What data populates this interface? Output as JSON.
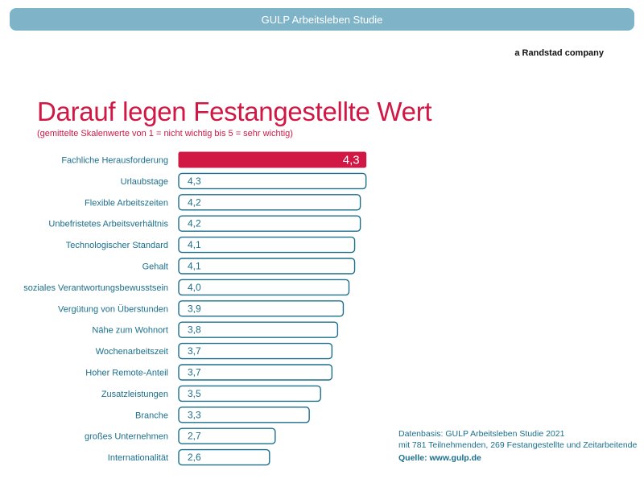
{
  "header": {
    "title": "GULP Arbeitsleben Studie"
  },
  "brand": {
    "tagline": "a Randstad company"
  },
  "footnote": {
    "line1": "Datenbasis: GULP Arbeitsleben Studie 2021",
    "line2": "mit 781 Teilnehmenden, 269 Festangestellte und Zeitarbeitende",
    "source": "Quelle: www.gulp.de"
  },
  "colors": {
    "accent": "#d11845",
    "bar_outline": "#1b6f8c",
    "label": "#1b6f8c",
    "header": "#7fb4c8"
  },
  "chart_data": {
    "type": "bar",
    "orientation": "horizontal",
    "title": "Darauf legen Festangestellte Wert",
    "subtitle": "(gemittelte Skalenwerte von 1 = nicht wichtig bis 5 = sehr wichtig)",
    "categories": [
      "Fachliche Herausforderung",
      "Urlaubstage",
      "Flexible Arbeitszeiten",
      "Unbefristetes Arbeitsverhältnis",
      "Technologischer Standard",
      "Gehalt",
      "soziales Verantwortungsbewusstsein",
      "Vergütung von Überstunden",
      "Nähe zum Wohnort",
      "Wochenarbeitszeit",
      "Hoher Remote-Anteil",
      "Zusatzleistungen",
      "Branche",
      "großes Unternehmen",
      "Internationalität"
    ],
    "values": [
      4.3,
      4.3,
      4.2,
      4.2,
      4.1,
      4.1,
      4.0,
      3.9,
      3.8,
      3.7,
      3.7,
      3.5,
      3.3,
      2.7,
      2.6
    ],
    "value_labels": [
      "4,3",
      "4,3",
      "4,2",
      "4,2",
      "4,1",
      "4,1",
      "4,0",
      "3,9",
      "3,8",
      "3,7",
      "3,7",
      "3,5",
      "3,3",
      "2,7",
      "2,6"
    ],
    "highlighted_index": 0,
    "xlim": [
      1,
      5
    ],
    "grid": false,
    "legend": "none"
  }
}
